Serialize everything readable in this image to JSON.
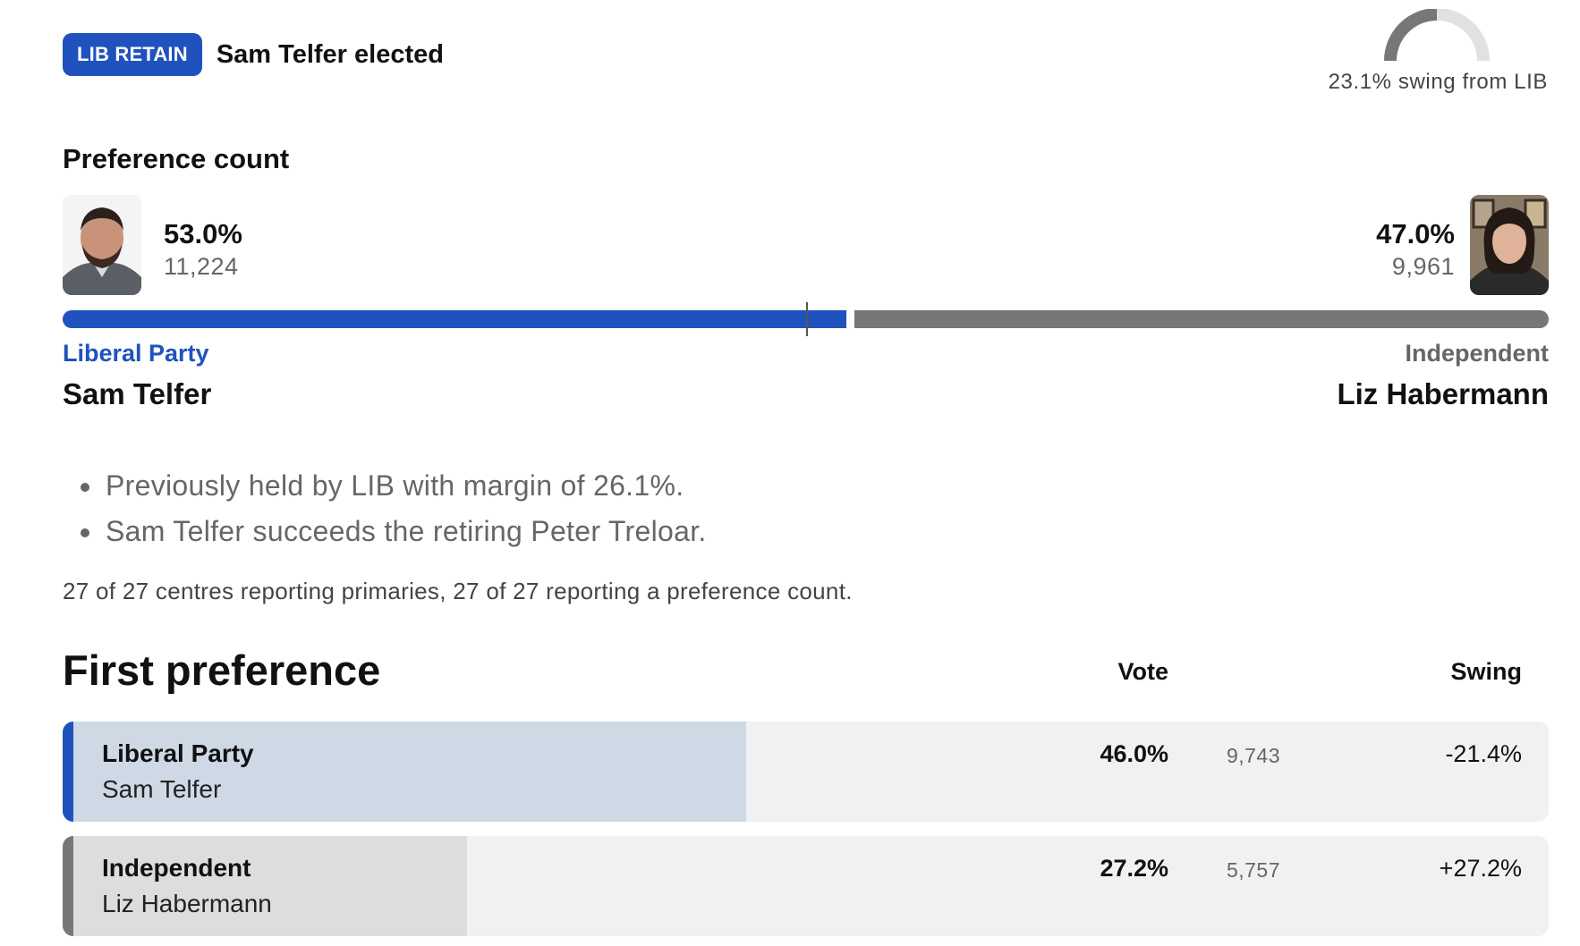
{
  "header": {
    "badge": "LIB RETAIN",
    "elected_text": "Sam Telfer elected",
    "swing_text": "23.1% swing from LIB",
    "swing_value": 23.1
  },
  "preference_count": {
    "heading": "Preference count",
    "left": {
      "pct": "53.0%",
      "share": 53.0,
      "votes": "11,224",
      "party": "Liberal Party",
      "name": "Sam Telfer",
      "color": "#1f52bd"
    },
    "right": {
      "pct": "47.0%",
      "share": 47.0,
      "votes": "9,961",
      "party": "Independent",
      "name": "Liz Habermann",
      "color": "#777777"
    }
  },
  "notes": [
    "Previously held by LIB with margin of 26.1%.",
    "Sam Telfer succeeds the retiring Peter Treloar."
  ],
  "reporting": "27 of 27 centres reporting primaries, 27 of 27 reporting a preference count.",
  "first_preference": {
    "heading": "First preference",
    "col_vote": "Vote",
    "col_swing": "Swing",
    "rows": [
      {
        "party": "Liberal Party",
        "name": "Sam Telfer",
        "pct": "46.0%",
        "share": 46.0,
        "votes": "9,743",
        "swing": "-21.4%",
        "accent": "#1f52bd",
        "fill": "#cfd9e6"
      },
      {
        "party": "Independent",
        "name": "Liz Habermann",
        "pct": "27.2%",
        "share": 27.2,
        "votes": "5,757",
        "swing": "+27.2%",
        "accent": "#777777",
        "fill": "#dddddd"
      }
    ]
  }
}
